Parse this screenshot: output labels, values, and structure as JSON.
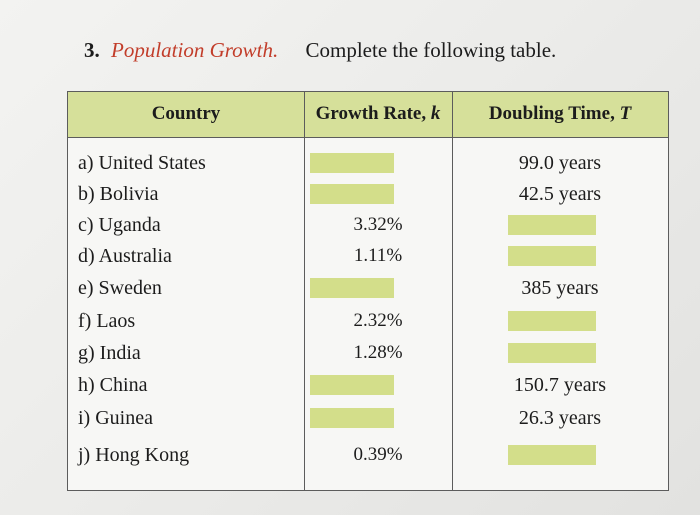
{
  "problem": {
    "number": "3.",
    "topic": "Population Growth.",
    "instruction": "Complete the following table."
  },
  "table": {
    "headers": {
      "country": "Country",
      "growth_rate": "Growth Rate, ",
      "growth_rate_symbol": "k",
      "doubling_time": "Doubling Time, ",
      "doubling_time_symbol": "T"
    },
    "rows": [
      {
        "letter": "a)",
        "country": "United States",
        "growth_rate": null,
        "doubling_time": "99.0 years"
      },
      {
        "letter": "b)",
        "country": "Bolivia",
        "growth_rate": null,
        "doubling_time": "42.5 years"
      },
      {
        "letter": "c)",
        "country": "Uganda",
        "growth_rate": "3.32%",
        "doubling_time": null
      },
      {
        "letter": "d)",
        "country": "Australia",
        "growth_rate": "1.11%",
        "doubling_time": null
      },
      {
        "letter": "e)",
        "country": "Sweden",
        "growth_rate": null,
        "doubling_time": "385 years"
      },
      {
        "letter": "f)",
        "country": "Laos",
        "growth_rate": "2.32%",
        "doubling_time": null
      },
      {
        "letter": "g)",
        "country": "India",
        "growth_rate": "1.28%",
        "doubling_time": null
      },
      {
        "letter": "h)",
        "country": "China",
        "growth_rate": null,
        "doubling_time": "150.7 years"
      },
      {
        "letter": "i)",
        "country": "Guinea",
        "growth_rate": null,
        "doubling_time": "26.3 years"
      },
      {
        "letter": "j)",
        "country": "Hong Kong",
        "growth_rate": "0.39%",
        "doubling_time": null
      }
    ]
  },
  "colors": {
    "header_fill": "#d6e09a",
    "blank_fill": "#d3de8a",
    "topic_text": "#c23d2a"
  }
}
